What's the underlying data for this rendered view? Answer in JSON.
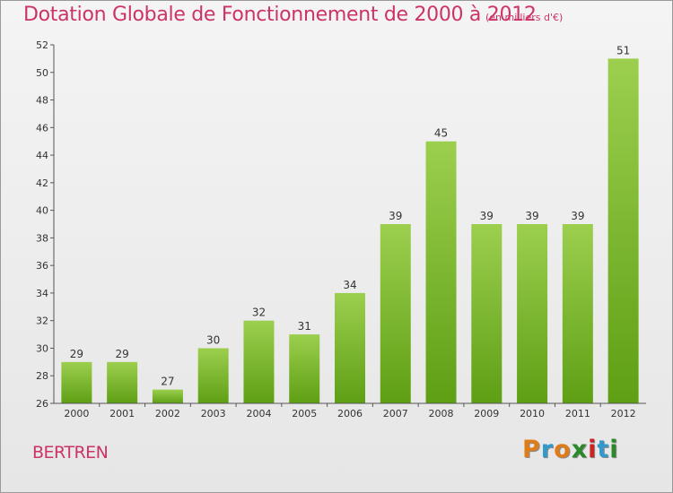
{
  "header": {
    "title": "Dotation Globale de Fonctionnement de 2000 à 2012",
    "unit": "(en milliers d'€)"
  },
  "footer": {
    "place": "BERTREN",
    "logo": "Proxiti",
    "logo_colors": [
      "#e07b1a",
      "#3399cc",
      "#e07b1a",
      "#2a8a2a",
      "#cc2222",
      "#3399cc",
      "#2a8a2a"
    ]
  },
  "colors": {
    "bar_top": "#9ccf4e",
    "bar_bottom": "#5e9f14",
    "axis": "#555555",
    "text": "#333333"
  },
  "chart_data": {
    "type": "bar",
    "title": "Dotation Globale de Fonctionnement de 2000 à 2012",
    "subtitle": "(en milliers d'€)",
    "xlabel": "",
    "ylabel": "",
    "categories": [
      "2000",
      "2001",
      "2002",
      "2003",
      "2004",
      "2005",
      "2006",
      "2007",
      "2008",
      "2009",
      "2010",
      "2011",
      "2012"
    ],
    "values": [
      29,
      29,
      27,
      30,
      32,
      31,
      34,
      39,
      45,
      39,
      39,
      39,
      51
    ],
    "data_labels": [
      "29",
      "29",
      "27",
      "30",
      "32",
      "31",
      "34",
      "39",
      "45",
      "39",
      "39",
      "39",
      "51"
    ],
    "ylim": [
      26,
      52
    ],
    "yticks": [
      26,
      28,
      30,
      32,
      34,
      36,
      38,
      40,
      42,
      44,
      46,
      48,
      50,
      52
    ],
    "grid": false,
    "legend": "none"
  }
}
